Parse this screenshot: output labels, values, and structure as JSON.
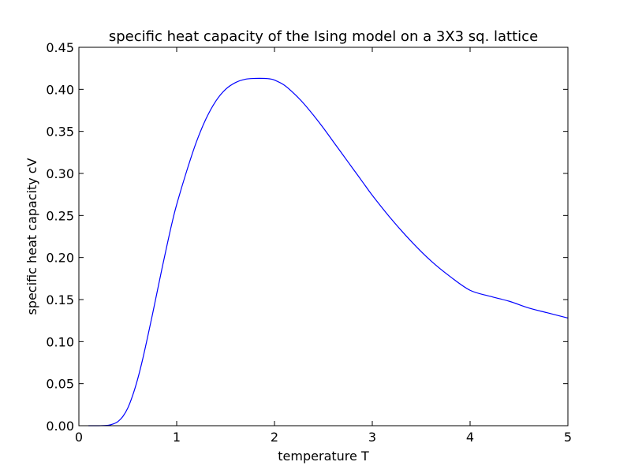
{
  "chart_data": {
    "type": "line",
    "title": "specific heat capacity of the Ising model on a 3X3 sq. lattice",
    "xlabel": "temperature T",
    "ylabel": "specific heat capacity cV",
    "xlim": [
      0,
      5
    ],
    "ylim": [
      0,
      0.45
    ],
    "x_ticks": [
      0,
      1,
      2,
      3,
      4,
      5
    ],
    "x_tick_labels": [
      "0",
      "1",
      "2",
      "3",
      "4",
      "5"
    ],
    "y_ticks": [
      0,
      0.05,
      0.1,
      0.15,
      0.2,
      0.25,
      0.3,
      0.35,
      0.4,
      0.45
    ],
    "y_tick_labels": [
      "0.00",
      "0.05",
      "0.10",
      "0.15",
      "0.20",
      "0.25",
      "0.30",
      "0.35",
      "0.40",
      "0.45"
    ],
    "grid": false,
    "legend": "none",
    "series": [
      {
        "color": "#0000ff",
        "x": [
          0.1,
          0.2,
          0.3,
          0.35,
          0.4,
          0.45,
          0.5,
          0.55,
          0.6,
          0.65,
          0.7,
          0.75,
          0.8,
          0.85,
          0.9,
          0.95,
          1.0,
          1.1,
          1.2,
          1.3,
          1.4,
          1.5,
          1.6,
          1.7,
          1.8,
          1.9,
          1.95,
          2.0,
          2.1,
          2.2,
          2.3,
          2.4,
          2.5,
          2.6,
          2.7,
          2.8,
          2.9,
          3.0,
          3.2,
          3.4,
          3.6,
          3.8,
          4.0,
          4.2,
          4.4,
          4.6,
          4.8,
          5.0
        ],
        "y": [
          0.0,
          0.0,
          0.0005,
          0.002,
          0.005,
          0.011,
          0.021,
          0.036,
          0.055,
          0.078,
          0.104,
          0.131,
          0.159,
          0.187,
          0.214,
          0.24,
          0.263,
          0.302,
          0.337,
          0.365,
          0.386,
          0.4,
          0.408,
          0.412,
          0.413,
          0.413,
          0.4125,
          0.411,
          0.405,
          0.395,
          0.383,
          0.369,
          0.354,
          0.338,
          0.322,
          0.306,
          0.29,
          0.274,
          0.245,
          0.219,
          0.196,
          0.177,
          0.161,
          0.154,
          0.148,
          0.14,
          0.134,
          0.128
        ]
      }
    ]
  }
}
